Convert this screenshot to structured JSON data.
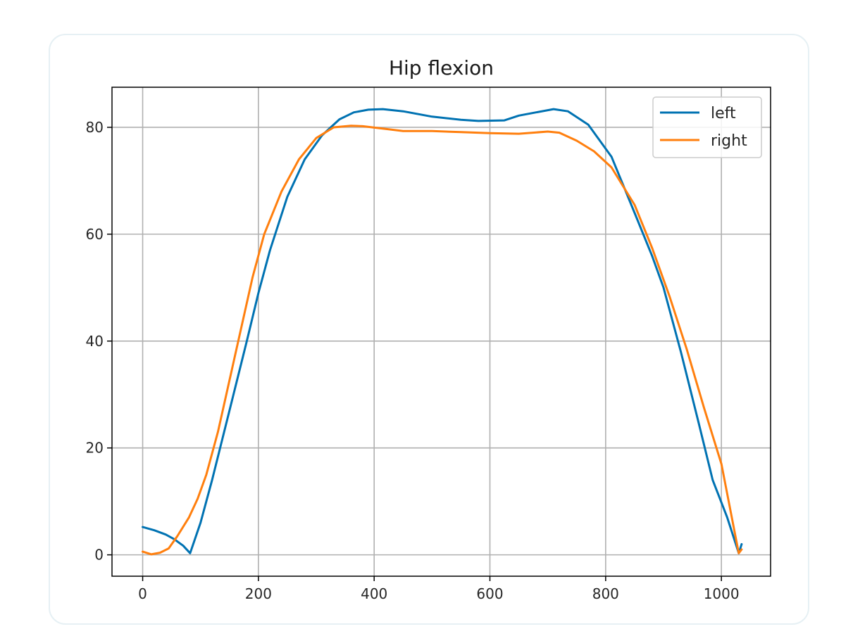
{
  "chart_data": {
    "type": "line",
    "title": "Hip flexion",
    "xlabel": "",
    "ylabel": "",
    "xlim": [
      -53,
      1085
    ],
    "ylim": [
      -4,
      87.5
    ],
    "xticks": [
      0,
      200,
      400,
      600,
      800,
      1000
    ],
    "yticks": [
      0,
      20,
      40,
      60,
      80
    ],
    "grid": true,
    "legend_position": "upper right",
    "series": [
      {
        "name": "left",
        "color": "#0072b2",
        "x": [
          0,
          20,
          40,
          55,
          70,
          82,
          100,
          120,
          150,
          180,
          200,
          220,
          250,
          280,
          310,
          340,
          365,
          390,
          415,
          450,
          500,
          550,
          580,
          625,
          650,
          680,
          710,
          735,
          770,
          810,
          850,
          880,
          900,
          930,
          960,
          985,
          1010,
          1030,
          1035
        ],
        "values": [
          5.2,
          4.6,
          3.8,
          2.9,
          1.7,
          0.3,
          6.0,
          14.0,
          27.0,
          40.0,
          49.0,
          57.0,
          67.0,
          74.0,
          78.5,
          81.5,
          82.8,
          83.3,
          83.4,
          83.0,
          82.0,
          81.4,
          81.2,
          81.3,
          82.2,
          82.8,
          83.4,
          83.0,
          80.5,
          74.5,
          64.0,
          56.0,
          50.0,
          38.0,
          25.0,
          14.0,
          7.0,
          0.3,
          2.0
        ]
      },
      {
        "name": "right",
        "color": "#ff7f0e",
        "x": [
          0,
          15,
          30,
          45,
          60,
          80,
          95,
          110,
          130,
          160,
          190,
          210,
          240,
          270,
          300,
          330,
          360,
          380,
          420,
          450,
          500,
          550,
          600,
          650,
          700,
          720,
          750,
          780,
          810,
          850,
          880,
          910,
          940,
          970,
          1000,
          1030,
          1035
        ],
        "values": [
          0.6,
          0.1,
          0.4,
          1.2,
          3.5,
          7.0,
          10.5,
          15.0,
          23.0,
          37.5,
          52.0,
          60.0,
          68.0,
          74.0,
          78.0,
          80.0,
          80.3,
          80.2,
          79.7,
          79.3,
          79.3,
          79.1,
          78.9,
          78.8,
          79.2,
          79.0,
          77.5,
          75.5,
          72.5,
          65.5,
          57.5,
          48.5,
          38.5,
          27.5,
          17.0,
          0.3,
          1.0
        ]
      }
    ]
  }
}
